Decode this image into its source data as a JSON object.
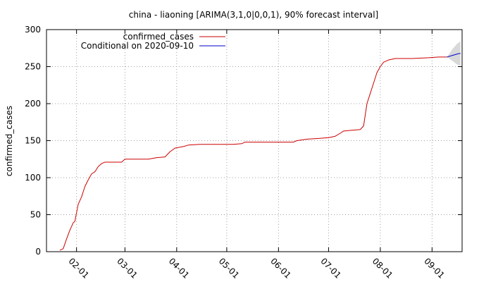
{
  "chart_data": {
    "type": "line",
    "title": "china - liaoning [ARIMA(3,1,0|0,0,1), 90% forecast interval]",
    "ylabel": "confirmed_cases",
    "xlabel": "",
    "ylim": [
      0,
      300
    ],
    "xlim": [
      "2020-01-14",
      "2020-09-19"
    ],
    "yticks": [
      0,
      50,
      100,
      150,
      200,
      250,
      300
    ],
    "xticks": [
      {
        "date": "2020-02-01",
        "label": "02-01"
      },
      {
        "date": "2020-03-01",
        "label": "03-01"
      },
      {
        "date": "2020-04-01",
        "label": "04-01"
      },
      {
        "date": "2020-05-01",
        "label": "05-01"
      },
      {
        "date": "2020-06-01",
        "label": "06-01"
      },
      {
        "date": "2020-07-01",
        "label": "07-01"
      },
      {
        "date": "2020-08-01",
        "label": "08-01"
      },
      {
        "date": "2020-09-01",
        "label": "09-01"
      }
    ],
    "grid": true,
    "legend_position": "top-left",
    "series": [
      {
        "name": "confirmed_cases",
        "color": "#cc0000",
        "points": [
          [
            "2020-01-22",
            2
          ],
          [
            "2020-01-24",
            4
          ],
          [
            "2020-01-26",
            17
          ],
          [
            "2020-01-28",
            29
          ],
          [
            "2020-01-30",
            39
          ],
          [
            "2020-01-31",
            41
          ],
          [
            "2020-02-02",
            64
          ],
          [
            "2020-02-04",
            74
          ],
          [
            "2020-02-06",
            88
          ],
          [
            "2020-02-08",
            97
          ],
          [
            "2020-02-10",
            105
          ],
          [
            "2020-02-12",
            108
          ],
          [
            "2020-02-14",
            115
          ],
          [
            "2020-02-16",
            119
          ],
          [
            "2020-02-18",
            121
          ],
          [
            "2020-02-22",
            121
          ],
          [
            "2020-02-28",
            121
          ],
          [
            "2020-03-01",
            125
          ],
          [
            "2020-03-10",
            125
          ],
          [
            "2020-03-15",
            125
          ],
          [
            "2020-03-20",
            127
          ],
          [
            "2020-03-25",
            128
          ],
          [
            "2020-03-28",
            135
          ],
          [
            "2020-03-31",
            140
          ],
          [
            "2020-04-05",
            142
          ],
          [
            "2020-04-08",
            144
          ],
          [
            "2020-04-15",
            145
          ],
          [
            "2020-04-25",
            145
          ],
          [
            "2020-05-05",
            145
          ],
          [
            "2020-05-10",
            146
          ],
          [
            "2020-05-12",
            148
          ],
          [
            "2020-05-25",
            148
          ],
          [
            "2020-06-05",
            148
          ],
          [
            "2020-06-10",
            148
          ],
          [
            "2020-06-12",
            150
          ],
          [
            "2020-06-18",
            152
          ],
          [
            "2020-06-25",
            153
          ],
          [
            "2020-07-01",
            154
          ],
          [
            "2020-07-05",
            156
          ],
          [
            "2020-07-08",
            160
          ],
          [
            "2020-07-10",
            163
          ],
          [
            "2020-07-15",
            164
          ],
          [
            "2020-07-20",
            165
          ],
          [
            "2020-07-22",
            170
          ],
          [
            "2020-07-24",
            200
          ],
          [
            "2020-07-26",
            214
          ],
          [
            "2020-07-28",
            228
          ],
          [
            "2020-07-30",
            242
          ],
          [
            "2020-08-01",
            250
          ],
          [
            "2020-08-03",
            256
          ],
          [
            "2020-08-06",
            259
          ],
          [
            "2020-08-10",
            261
          ],
          [
            "2020-08-20",
            261
          ],
          [
            "2020-08-30",
            262
          ],
          [
            "2020-09-05",
            263
          ],
          [
            "2020-09-10",
            263
          ]
        ]
      },
      {
        "name": "Conditional on 2020-09-10",
        "color": "#0000cc",
        "points": [
          [
            "2020-09-10",
            263
          ],
          [
            "2020-09-13",
            265
          ],
          [
            "2020-09-16",
            267
          ],
          [
            "2020-09-18",
            268
          ]
        ]
      }
    ],
    "forecast_interval": {
      "label": "90% forecast interval",
      "color": "#d8d8d8",
      "points": [
        [
          "2020-09-10",
          263,
          263
        ],
        [
          "2020-09-13",
          258,
          273
        ],
        [
          "2020-09-16",
          253,
          281
        ],
        [
          "2020-09-18",
          251,
          284
        ]
      ]
    }
  }
}
